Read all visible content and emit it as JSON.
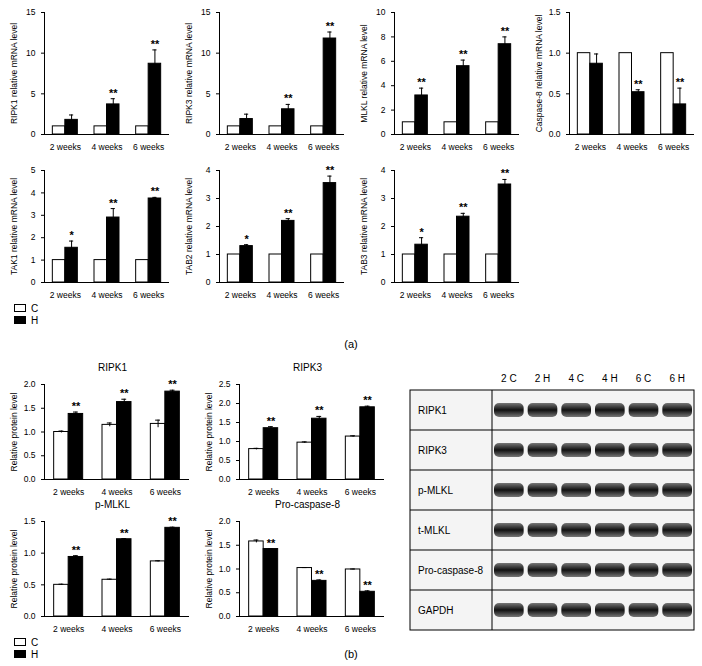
{
  "chart_data": [
    {
      "type": "bar",
      "ylabel": "RIPK1 relative mRNA level",
      "categories": [
        "2 weeks",
        "4 weeks",
        "6 weeks"
      ],
      "series": [
        {
          "name": "C",
          "color": "#ffffff",
          "values": [
            1,
            1,
            1
          ]
        },
        {
          "name": "H",
          "color": "#000000",
          "values": [
            1.8,
            3.7,
            8.7
          ],
          "errors": [
            0.6,
            0.7,
            1.7
          ],
          "significance": [
            null,
            "**",
            "**"
          ]
        }
      ],
      "ylim": [
        0,
        15
      ],
      "yticks": [
        0,
        5,
        10,
        15
      ]
    },
    {
      "type": "bar",
      "ylabel": "RIPK3 relative mRNA level",
      "categories": [
        "2 weeks",
        "4 weeks",
        "6 weeks"
      ],
      "series": [
        {
          "name": "C",
          "color": "#ffffff",
          "values": [
            1,
            1,
            1
          ]
        },
        {
          "name": "H",
          "color": "#000000",
          "values": [
            1.9,
            3.1,
            11.8
          ],
          "errors": [
            0.6,
            0.6,
            0.8
          ],
          "significance": [
            null,
            "**",
            "**"
          ]
        }
      ],
      "ylim": [
        0,
        15
      ],
      "yticks": [
        0,
        5,
        10,
        15
      ]
    },
    {
      "type": "bar",
      "ylabel": "MLKL relative mRNA level",
      "categories": [
        "2 weeks",
        "4 weeks",
        "6 weeks"
      ],
      "series": [
        {
          "name": "C",
          "color": "#ffffff",
          "values": [
            1,
            1,
            1
          ]
        },
        {
          "name": "H",
          "color": "#000000",
          "values": [
            3.2,
            5.6,
            7.4
          ],
          "errors": [
            0.6,
            0.5,
            0.6
          ],
          "significance": [
            "**",
            "**",
            "**"
          ]
        }
      ],
      "ylim": [
        0,
        10
      ],
      "yticks": [
        0,
        2,
        4,
        6,
        8,
        10
      ]
    },
    {
      "type": "bar",
      "ylabel": "Caspase-8 relative mRNA level",
      "categories": [
        "2 weeks",
        "4 weeks",
        "6 weeks"
      ],
      "series": [
        {
          "name": "C",
          "color": "#ffffff",
          "values": [
            1,
            1,
            1
          ]
        },
        {
          "name": "H",
          "color": "#000000",
          "values": [
            0.87,
            0.52,
            0.37
          ],
          "errors": [
            0.12,
            0.03,
            0.2
          ],
          "significance": [
            null,
            "**",
            "**"
          ]
        }
      ],
      "ylim": [
        0,
        1.5
      ],
      "yticks": [
        {
          "value": 0,
          "label": "0.0"
        },
        0.5,
        {
          "value": 1,
          "label": "1.0"
        },
        1.5
      ]
    },
    {
      "type": "bar",
      "ylabel": "TAK1 relative mRNA level",
      "categories": [
        "2 weeks",
        "4 weeks",
        "6 weeks"
      ],
      "series": [
        {
          "name": "C",
          "color": "#ffffff",
          "values": [
            1,
            1,
            1
          ]
        },
        {
          "name": "H",
          "color": "#000000",
          "values": [
            1.55,
            2.9,
            3.75
          ],
          "errors": [
            0.3,
            0.4,
            0.05
          ],
          "significance": [
            "*",
            "**",
            "**"
          ]
        }
      ],
      "ylim": [
        0,
        5
      ],
      "yticks": [
        0,
        1,
        2,
        3,
        4,
        5
      ],
      "legend": "bottom"
    },
    {
      "type": "bar",
      "ylabel": "TAB2 relative mRNA level",
      "categories": [
        "2 weeks",
        "4 weeks",
        "6 weeks"
      ],
      "series": [
        {
          "name": "C",
          "color": "#ffffff",
          "values": [
            1,
            1,
            1
          ]
        },
        {
          "name": "H",
          "color": "#000000",
          "values": [
            1.3,
            2.2,
            3.55
          ],
          "errors": [
            0.05,
            0.08,
            0.25
          ],
          "significance": [
            "*",
            "**",
            "**"
          ]
        }
      ],
      "ylim": [
        0,
        4
      ],
      "yticks": [
        0,
        1,
        2,
        3,
        4
      ]
    },
    {
      "type": "bar",
      "ylabel": "TAB3 relative mRNA level",
      "categories": [
        "2 weeks",
        "4 weeks",
        "6 weeks"
      ],
      "series": [
        {
          "name": "C",
          "color": "#ffffff",
          "values": [
            1,
            1,
            1
          ]
        },
        {
          "name": "H",
          "color": "#000000",
          "values": [
            1.35,
            2.35,
            3.5
          ],
          "errors": [
            0.25,
            0.12,
            0.18
          ],
          "significance": [
            "*",
            "**",
            "**"
          ]
        }
      ],
      "ylim": [
        0,
        4
      ],
      "yticks": [
        0,
        1,
        2,
        3,
        4
      ]
    },
    {
      "type": "bar",
      "title": "RIPK1",
      "ylabel": "Relative protein level",
      "categories": [
        "2 weeks",
        "4 weeks",
        "6 weeks"
      ],
      "series": [
        {
          "name": "C",
          "color": "#ffffff",
          "values": [
            1.0,
            1.15,
            1.17
          ],
          "errors": [
            0.02,
            0.04,
            0.08
          ]
        },
        {
          "name": "H",
          "color": "#000000",
          "values": [
            1.38,
            1.63,
            1.85
          ],
          "errors": [
            0.04,
            0.06,
            0.03
          ],
          "significance": [
            "**",
            "**",
            "**"
          ]
        }
      ],
      "ylim": [
        0,
        2
      ],
      "yticks": [
        {
          "value": 0,
          "label": "0.0"
        },
        0.5,
        {
          "value": 1,
          "label": "1.0"
        },
        1.5,
        {
          "value": 2,
          "label": "2.0"
        }
      ]
    },
    {
      "type": "bar",
      "title": "RIPK3",
      "ylabel": "Relative protein level",
      "categories": [
        "2 weeks",
        "4 weeks",
        "6 weeks"
      ],
      "series": [
        {
          "name": "C",
          "color": "#ffffff",
          "values": [
            0.8,
            0.97,
            1.13
          ],
          "errors": [
            0.02,
            0.02,
            0.02
          ]
        },
        {
          "name": "H",
          "color": "#000000",
          "values": [
            1.35,
            1.6,
            1.9
          ],
          "errors": [
            0.04,
            0.06,
            0.03
          ],
          "significance": [
            "**",
            "**",
            "**"
          ]
        }
      ],
      "ylim": [
        0,
        2.5
      ],
      "yticks": [
        {
          "value": 0,
          "label": "0.0"
        },
        0.5,
        {
          "value": 1,
          "label": "1.0"
        },
        1.5,
        {
          "value": 2,
          "label": "2.0"
        },
        2.5
      ]
    },
    {
      "type": "bar",
      "title": "p-MLKL",
      "ylabel": "Relative protein level",
      "categories": [
        "2 weeks",
        "4 weeks",
        "6 weeks"
      ],
      "series": [
        {
          "name": "C",
          "color": "#ffffff",
          "values": [
            0.5,
            0.58,
            0.87
          ],
          "errors": [
            0.01,
            0.01,
            0.01
          ]
        },
        {
          "name": "H",
          "color": "#000000",
          "values": [
            0.94,
            1.22,
            1.4
          ],
          "errors": [
            0.02,
            0.01,
            0.01
          ],
          "significance": [
            "**",
            "**",
            "**"
          ]
        }
      ],
      "ylim": [
        0,
        1.5
      ],
      "yticks": [
        {
          "value": 0,
          "label": "0.0"
        },
        0.5,
        {
          "value": 1,
          "label": "1.0"
        },
        1.5
      ],
      "legend": "bottom"
    },
    {
      "type": "bar",
      "title": "Pro-caspase-8",
      "ylabel": "Relative protein level",
      "categories": [
        "2 weeks",
        "4 weeks",
        "6 weeks"
      ],
      "series": [
        {
          "name": "C",
          "color": "#ffffff",
          "values": [
            1.58,
            1.02,
            0.99
          ],
          "errors": [
            0.03,
            0.01,
            0.01
          ]
        },
        {
          "name": "H",
          "color": "#000000",
          "values": [
            1.42,
            0.75,
            0.52
          ],
          "errors": [
            0.01,
            0.02,
            0.02
          ],
          "significance": [
            "**",
            "**",
            "**"
          ]
        }
      ],
      "ylim": [
        0,
        2
      ],
      "yticks": [
        {
          "value": 0,
          "label": "0.0"
        },
        0.5,
        {
          "value": 1,
          "label": "1.0"
        },
        1.5,
        {
          "value": 2,
          "label": "2.0"
        }
      ]
    }
  ],
  "panel_labels": [
    "(a)",
    "(b)"
  ],
  "blot": {
    "lanes": [
      "2 C",
      "2 H",
      "4 C",
      "4 H",
      "6 C",
      "6 H"
    ],
    "rows": [
      "RIPK1",
      "RIPK3",
      "p-MLKL",
      "t-MLKL",
      "Pro-caspase-8",
      "GAPDH"
    ]
  }
}
